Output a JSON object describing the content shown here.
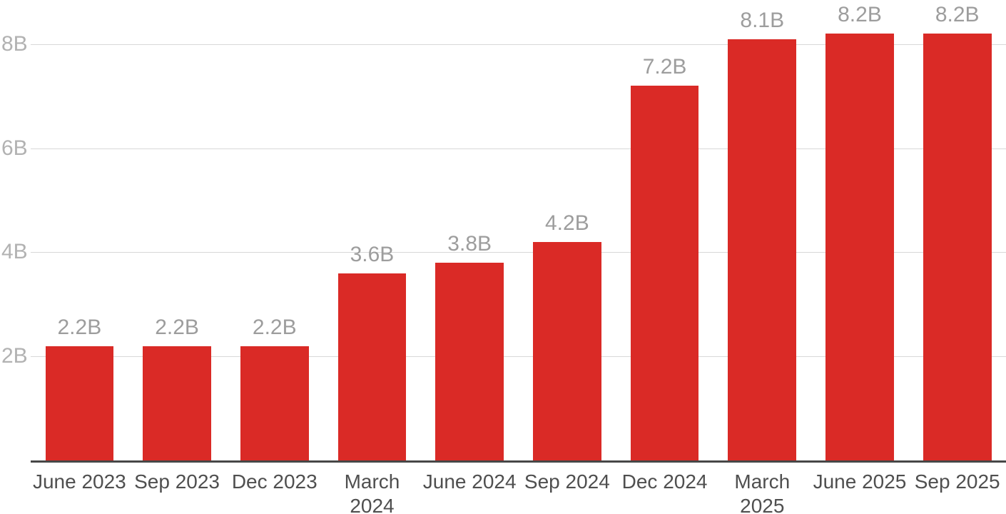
{
  "chart_data": {
    "type": "bar",
    "categories": [
      "June 2023",
      "Sep 2023",
      "Dec 2023",
      "March 2024",
      "June 2024",
      "Sep 2024",
      "Dec 2024",
      "March 2025",
      "June 2025",
      "Sep 2025"
    ],
    "values": [
      2.2,
      2.2,
      2.2,
      3.6,
      3.8,
      4.2,
      7.2,
      8.1,
      8.2,
      8.2
    ],
    "bar_labels": [
      "2.2B",
      "2.2B",
      "2.2B",
      "3.6B",
      "3.8B",
      "4.2B",
      "7.2B",
      "8.1B",
      "8.2B",
      "8.2B"
    ],
    "yticks": [
      {
        "value": 2,
        "label": "2B"
      },
      {
        "value": 4,
        "label": "4B"
      },
      {
        "value": 6,
        "label": "6B"
      },
      {
        "value": 8,
        "label": "8B"
      }
    ],
    "ylim": [
      0,
      8.85
    ],
    "grid": true,
    "legend": "none",
    "title": "",
    "xlabel": "",
    "ylabel": "",
    "colors": {
      "bar": "#da2a26",
      "gridline": "#d8d8d8",
      "baseline": "#474747",
      "ytick_label": "#b2b2b2",
      "value_label": "#9d9d9d",
      "xtick_label": "#4f4f4f"
    }
  }
}
